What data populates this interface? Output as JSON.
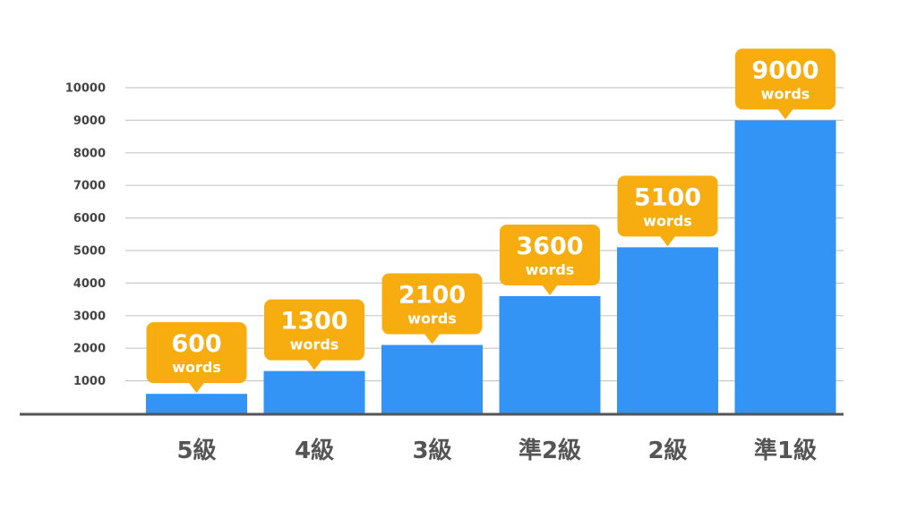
{
  "chart_data": {
    "type": "bar",
    "categories": [
      "5級",
      "4級",
      "3級",
      "準2級",
      "2級",
      "準1級"
    ],
    "values": [
      600,
      1300,
      2100,
      3600,
      5100,
      9000
    ],
    "data_labels": [
      {
        "value": "600",
        "unit": "words"
      },
      {
        "value": "1300",
        "unit": "words"
      },
      {
        "value": "2100",
        "unit": "words"
      },
      {
        "value": "3600",
        "unit": "words"
      },
      {
        "value": "5100",
        "unit": "words"
      },
      {
        "value": "9000",
        "unit": "words"
      }
    ],
    "y_ticks": [
      "1000",
      "2000",
      "3000",
      "4000",
      "5000",
      "6000",
      "7000",
      "8000",
      "9000",
      "10000"
    ],
    "ylim": [
      0,
      10000
    ],
    "grid": true,
    "legend": "none",
    "title": "",
    "xlabel": "",
    "ylabel": ""
  },
  "colors": {
    "bar": "#3394F5",
    "callout": "#F7AD0F",
    "callout_text": "#FFFFFF",
    "grid": "#C9C9C9",
    "axis": "#555555",
    "tick_text": "#444444",
    "category_text": "#555555"
  }
}
